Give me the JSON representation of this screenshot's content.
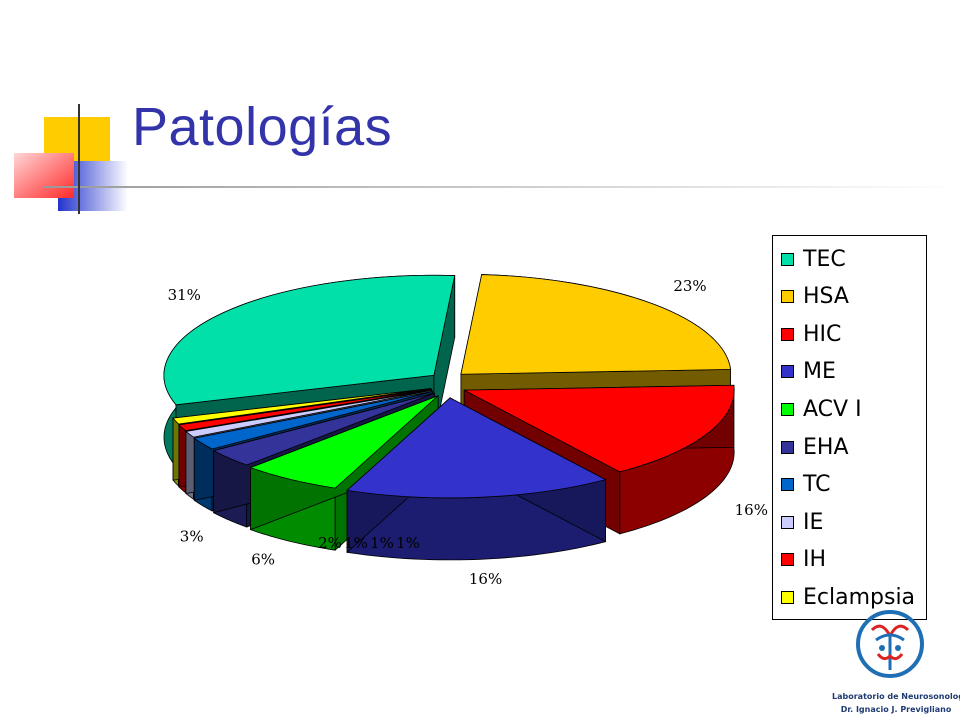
{
  "slide": {
    "title": "Patologías"
  },
  "chart_data": {
    "type": "pie",
    "title": "",
    "categories": [
      "TEC",
      "HSA",
      "HIC",
      "ME",
      "ACV I",
      "EHA",
      "TC",
      "IE",
      "IH",
      "Eclampsia"
    ],
    "values": [
      31,
      23,
      16,
      16,
      6,
      3,
      2,
      1,
      1,
      1
    ],
    "labels": [
      "31%",
      "23%",
      "16%",
      "16%",
      "6%",
      "3%",
      "2%",
      "1%",
      "1%",
      "1%"
    ],
    "colors": [
      "#00e0a8",
      "#ffcc00",
      "#ff0000",
      "#3333cc",
      "#00ff00",
      "#333399",
      "#0066cc",
      "#ccccff",
      "#ff0000",
      "#ffff00"
    ],
    "legend_position": "right",
    "style": "3d-exploded"
  },
  "logo": {
    "line1": "Laboratorio de Neurosonología",
    "line2": "Dr. Ignacio J. Previgliano"
  }
}
